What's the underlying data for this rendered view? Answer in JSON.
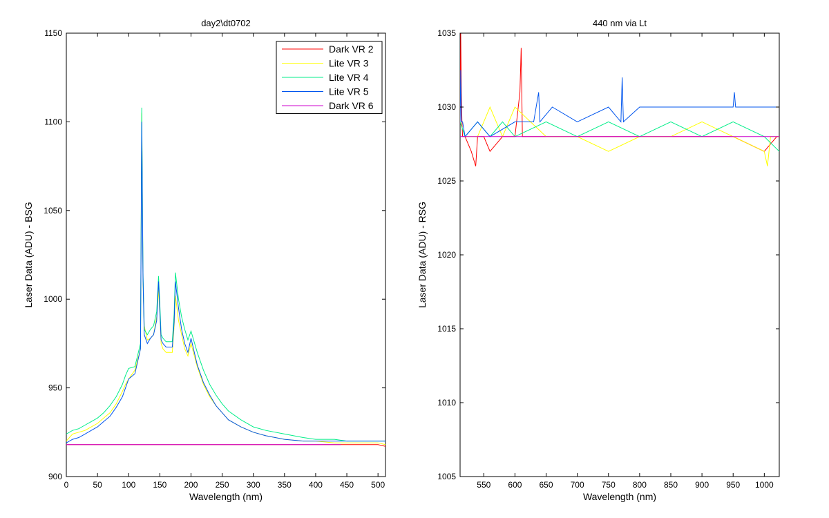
{
  "chart_data": [
    {
      "type": "line",
      "title": "day2\\dt0702",
      "xlabel": "Wavelength (nm)",
      "ylabel": "Laser Data (ADU) - BSG",
      "xlim": [
        0,
        512
      ],
      "ylim": [
        900,
        1150
      ],
      "xticks": [
        0,
        50,
        100,
        150,
        200,
        250,
        300,
        350,
        400,
        450,
        500
      ],
      "yticks": [
        900,
        950,
        1000,
        1050,
        1100,
        1150
      ],
      "grid": false,
      "legend_position": "top-right",
      "series": [
        {
          "name": "Dark VR 2",
          "color": "#ff0000",
          "x": [
            0,
            10,
            20,
            50,
            80,
            100,
            120,
            150,
            200,
            250,
            300,
            400,
            450,
            500,
            512
          ],
          "y": [
            918,
            918,
            918,
            918,
            918,
            918,
            918,
            918,
            918,
            918,
            918,
            918,
            918,
            918,
            917
          ]
        },
        {
          "name": "Lite VR 3",
          "color": "#ffff00",
          "x": [
            0,
            10,
            20,
            30,
            40,
            50,
            60,
            70,
            80,
            90,
            95,
            100,
            110,
            119,
            121,
            123,
            125,
            130,
            135,
            140,
            145,
            148,
            150,
            152,
            155,
            160,
            170,
            173,
            175,
            180,
            185,
            190,
            195,
            200,
            210,
            220,
            230,
            240,
            250,
            260,
            280,
            300,
            320,
            350,
            380,
            400,
            430,
            450,
            470,
            500,
            512
          ],
          "y": [
            920,
            924,
            925,
            926,
            928,
            930,
            933,
            936,
            941,
            948,
            952,
            955,
            960,
            972,
            1105,
            1010,
            985,
            977,
            978,
            980,
            990,
            1005,
            992,
            975,
            972,
            970,
            970,
            985,
            1002,
            988,
            980,
            972,
            968,
            975,
            962,
            952,
            945,
            940,
            936,
            932,
            928,
            925,
            923,
            921,
            920,
            920,
            919,
            919,
            919,
            919,
            918
          ]
        },
        {
          "name": "Lite VR 4",
          "color": "#00ee88",
          "x": [
            0,
            10,
            20,
            30,
            40,
            50,
            60,
            70,
            80,
            90,
            95,
            100,
            110,
            119,
            121,
            123,
            125,
            130,
            135,
            140,
            145,
            148,
            150,
            152,
            155,
            160,
            170,
            173,
            175,
            180,
            185,
            190,
            195,
            200,
            210,
            220,
            230,
            240,
            250,
            260,
            280,
            300,
            320,
            350,
            380,
            400,
            430,
            450,
            470,
            500,
            512
          ],
          "y": [
            924,
            926,
            927,
            929,
            931,
            933,
            936,
            940,
            945,
            952,
            957,
            961,
            962,
            975,
            1108,
            1015,
            983,
            980,
            983,
            985,
            993,
            1013,
            997,
            980,
            978,
            976,
            976,
            992,
            1015,
            1000,
            990,
            983,
            977,
            982,
            970,
            960,
            952,
            946,
            941,
            937,
            932,
            928,
            926,
            924,
            922,
            921,
            921,
            920,
            920,
            920,
            920
          ]
        },
        {
          "name": "Lite VR 5",
          "color": "#0055ee",
          "x": [
            0,
            10,
            20,
            30,
            40,
            50,
            60,
            70,
            80,
            90,
            95,
            100,
            110,
            119,
            121,
            123,
            125,
            130,
            135,
            140,
            145,
            148,
            150,
            152,
            155,
            160,
            170,
            173,
            175,
            180,
            185,
            190,
            195,
            200,
            210,
            220,
            230,
            240,
            250,
            260,
            280,
            300,
            320,
            350,
            380,
            400,
            430,
            450,
            470,
            500,
            512
          ],
          "y": [
            919,
            921,
            922,
            924,
            926,
            928,
            931,
            934,
            939,
            945,
            950,
            955,
            958,
            972,
            1100,
            1012,
            980,
            975,
            978,
            980,
            988,
            1010,
            993,
            977,
            975,
            973,
            973,
            987,
            1010,
            995,
            983,
            975,
            970,
            978,
            963,
            953,
            946,
            940,
            936,
            932,
            928,
            925,
            923,
            921,
            920,
            920,
            920,
            920,
            920,
            920,
            920
          ]
        },
        {
          "name": "Dark VR 6",
          "color": "#cc00cc",
          "x": [
            0,
            50,
            100,
            150,
            200,
            250,
            300,
            350,
            400,
            440
          ],
          "y": [
            918,
            918,
            918,
            918,
            918,
            918,
            918,
            918,
            918,
            918
          ]
        }
      ]
    },
    {
      "type": "line",
      "title": "440 nm via Lt",
      "xlabel": "Wavelength (nm)",
      "ylabel": "Laser Data (ADU) - RSG",
      "xlim": [
        512,
        1024
      ],
      "ylim": [
        1005,
        1035
      ],
      "xticks": [
        550,
        600,
        650,
        700,
        750,
        800,
        850,
        900,
        950,
        1000
      ],
      "yticks": [
        1005,
        1010,
        1015,
        1020,
        1025,
        1030,
        1035
      ],
      "grid": false,
      "series": [
        {
          "color": "#ff0000",
          "x": [
            512,
            513,
            514,
            515,
            516,
            520,
            530,
            537,
            540,
            550,
            560,
            580,
            600,
            608,
            610,
            612,
            620,
            650,
            700,
            750,
            800,
            850,
            900,
            950,
            1000,
            1020,
            1024
          ],
          "y": [
            1029,
            1035,
            1031,
            1029,
            1028,
            1028,
            1027,
            1026,
            1028,
            1028,
            1027,
            1028,
            1028,
            1031,
            1034,
            1028,
            1028,
            1028,
            1028,
            1028,
            1028,
            1028,
            1028,
            1028,
            1027,
            1028,
            1028
          ]
        },
        {
          "color": "#ffff00",
          "x": [
            512,
            520,
            540,
            560,
            580,
            600,
            650,
            700,
            750,
            800,
            850,
            900,
            950,
            1000,
            1005,
            1010,
            1024
          ],
          "y": [
            1029,
            1028,
            1028,
            1030,
            1028,
            1030,
            1028,
            1028,
            1027,
            1028,
            1028,
            1029,
            1028,
            1027,
            1026,
            1028,
            1028
          ]
        },
        {
          "color": "#00ee88",
          "x": [
            512,
            520,
            540,
            560,
            580,
            600,
            650,
            700,
            750,
            800,
            850,
            900,
            950,
            1000,
            1024
          ],
          "y": [
            1029,
            1028,
            1029,
            1028,
            1029,
            1028,
            1029,
            1028,
            1029,
            1028,
            1029,
            1028,
            1029,
            1028,
            1027
          ]
        },
        {
          "color": "#0055ee",
          "x": [
            512,
            513,
            514,
            516,
            520,
            540,
            560,
            600,
            630,
            638,
            640,
            660,
            700,
            750,
            770,
            772,
            774,
            800,
            850,
            900,
            950,
            952,
            954,
            1000,
            1024
          ],
          "y": [
            1029,
            1032.5,
            1029,
            1029,
            1028,
            1029,
            1028,
            1029,
            1029,
            1031,
            1029,
            1030,
            1029,
            1030,
            1029,
            1032,
            1029,
            1030,
            1030,
            1030,
            1030,
            1031,
            1030,
            1030,
            1030
          ]
        },
        {
          "color": "#cc00cc",
          "x": [
            512,
            520,
            560,
            600,
            650,
            700,
            750,
            800,
            850,
            900,
            950,
            1000,
            1024
          ],
          "y": [
            1028,
            1028,
            1028,
            1028,
            1028,
            1028,
            1028,
            1028,
            1028,
            1028,
            1028,
            1028,
            1028
          ]
        }
      ]
    }
  ]
}
